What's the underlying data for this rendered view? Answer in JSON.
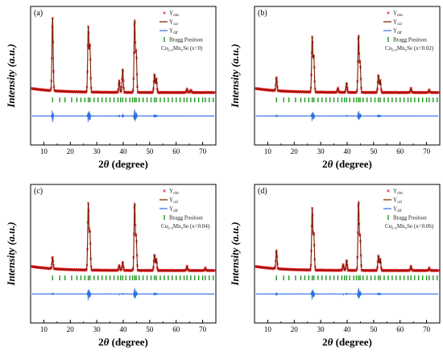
{
  "chart_data": [
    {
      "panel_label": "(a)",
      "type": "line",
      "xlabel": "2θ (degree)",
      "ylabel": "Intensity (a.u.)",
      "xlim": [
        5,
        75
      ],
      "x_ticks": [
        10,
        20,
        30,
        40,
        50,
        60,
        70
      ],
      "legend": {
        "observed": "Y_obs",
        "calculated": "Y_cal",
        "difference": "Y_dif",
        "bragg": "Bragg Position",
        "composition": "Cu2-xMnxSe  (x=0)"
      },
      "peaks": [
        {
          "x": 13.3,
          "intensity": 0.88
        },
        {
          "x": 26.8,
          "intensity": 0.78
        },
        {
          "x": 27.4,
          "intensity": 0.55
        },
        {
          "x": 38.5,
          "intensity": 0.14
        },
        {
          "x": 39.8,
          "intensity": 0.28
        },
        {
          "x": 44.3,
          "intensity": 0.86
        },
        {
          "x": 44.9,
          "intensity": 0.48
        },
        {
          "x": 51.8,
          "intensity": 0.22
        },
        {
          "x": 52.5,
          "intensity": 0.17
        },
        {
          "x": 64.1,
          "intensity": 0.04
        },
        {
          "x": 65.5,
          "intensity": 0.03
        }
      ]
    },
    {
      "panel_label": "(b)",
      "type": "line",
      "xlabel": "2θ (degree)",
      "ylabel": "Intensity (a.u.)",
      "xlim": [
        5,
        75
      ],
      "x_ticks": [
        10,
        20,
        30,
        40,
        50,
        60,
        70
      ],
      "legend": {
        "observed": "Y_obs",
        "calculated": "Y_cal",
        "difference": "Y_dif",
        "bragg": "Bragg Position",
        "composition": "Cu2-xMnxSe  (x=0.02)"
      },
      "peaks": [
        {
          "x": 13.3,
          "intensity": 0.16
        },
        {
          "x": 26.8,
          "intensity": 0.66
        },
        {
          "x": 27.4,
          "intensity": 0.42
        },
        {
          "x": 36.5,
          "intensity": 0.05
        },
        {
          "x": 39.8,
          "intensity": 0.11
        },
        {
          "x": 44.3,
          "intensity": 0.68
        },
        {
          "x": 44.9,
          "intensity": 0.35
        },
        {
          "x": 51.8,
          "intensity": 0.21
        },
        {
          "x": 52.5,
          "intensity": 0.15
        },
        {
          "x": 64.1,
          "intensity": 0.05
        },
        {
          "x": 71.0,
          "intensity": 0.03
        }
      ]
    },
    {
      "panel_label": "(c)",
      "type": "line",
      "xlabel": "2θ (degree)",
      "ylabel": "Intensity (a.u.)",
      "xlim": [
        5,
        75
      ],
      "x_ticks": [
        10,
        20,
        30,
        40,
        50,
        60,
        70
      ],
      "legend": {
        "observed": "Y_obs",
        "calculated": "Y_cal",
        "difference": "Y_dif",
        "bragg": "Bragg Position",
        "composition": "Cu2-xMnxSe  (x=0.04)"
      },
      "peaks": [
        {
          "x": 13.3,
          "intensity": 0.14
        },
        {
          "x": 26.8,
          "intensity": 0.8
        },
        {
          "x": 27.4,
          "intensity": 0.45
        },
        {
          "x": 38.5,
          "intensity": 0.06
        },
        {
          "x": 39.8,
          "intensity": 0.1
        },
        {
          "x": 44.3,
          "intensity": 0.8
        },
        {
          "x": 44.9,
          "intensity": 0.4
        },
        {
          "x": 51.8,
          "intensity": 0.19
        },
        {
          "x": 52.5,
          "intensity": 0.14
        },
        {
          "x": 64.1,
          "intensity": 0.05
        },
        {
          "x": 71.0,
          "intensity": 0.03
        }
      ]
    },
    {
      "panel_label": "(d)",
      "type": "line",
      "xlabel": "2θ (degree)",
      "ylabel": "Intensity (a.u.)",
      "xlim": [
        5,
        75
      ],
      "x_ticks": [
        10,
        20,
        30,
        40,
        50,
        60,
        70
      ],
      "legend": {
        "observed": "Y_obs",
        "calculated": "Y_cal",
        "difference": "Y_dif",
        "bragg": "Bragg Position",
        "composition": "Cu2-xMnxSe  (x=0.06)"
      },
      "peaks": [
        {
          "x": 13.3,
          "intensity": 0.22
        },
        {
          "x": 26.8,
          "intensity": 0.74
        },
        {
          "x": 27.4,
          "intensity": 0.42
        },
        {
          "x": 38.5,
          "intensity": 0.07
        },
        {
          "x": 39.8,
          "intensity": 0.12
        },
        {
          "x": 44.3,
          "intensity": 0.82
        },
        {
          "x": 44.9,
          "intensity": 0.4
        },
        {
          "x": 51.8,
          "intensity": 0.18
        },
        {
          "x": 52.5,
          "intensity": 0.14
        },
        {
          "x": 64.1,
          "intensity": 0.05
        },
        {
          "x": 71.0,
          "intensity": 0.03
        }
      ]
    }
  ],
  "colors": {
    "observed": "#e0101a",
    "calculated": "#7a1a00",
    "difference": "#2f6fe0",
    "bragg_ticks": "#1f9a1f",
    "axes": "#000000"
  },
  "bragg_positions": [
    13.3,
    16.0,
    18.0,
    20.5,
    22.5,
    24.0,
    25.5,
    26.8,
    27.4,
    29.0,
    30.5,
    32.0,
    33.5,
    35.0,
    36.5,
    38.0,
    39.0,
    39.8,
    41.0,
    42.5,
    43.5,
    44.3,
    44.9,
    46.0,
    47.5,
    49.0,
    50.5,
    51.8,
    52.5,
    54.0,
    55.5,
    57.0,
    58.5,
    60.0,
    61.5,
    63.0,
    64.1,
    65.5,
    67.0,
    68.5,
    70.0,
    71.0,
    72.5,
    74.0
  ]
}
